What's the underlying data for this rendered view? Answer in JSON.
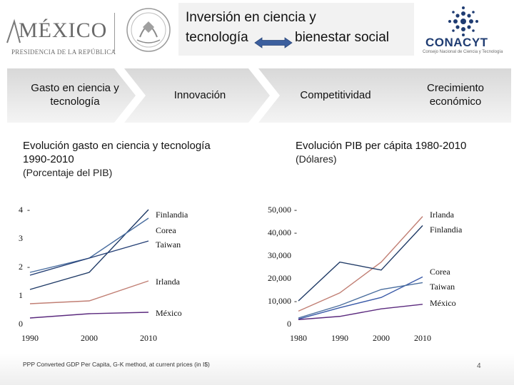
{
  "header": {
    "country_wordmark": "MÉXICO",
    "country_subtitle": "PRESIDENCIA DE LA REPÚBLICA",
    "title_line1": "Inversión en ciencia y",
    "title_left": "tecnología",
    "title_right": "bienestar social",
    "org_name": "CONACYT",
    "org_subtitle": "Consejo Nacional de Ciencia y Tecnología"
  },
  "flow": {
    "steps": [
      "Gasto en ciencia y tecnología",
      "Innovación",
      "Competitividad",
      "Crecimiento económico"
    ]
  },
  "left_section": {
    "title": "Evolución gasto en ciencia y tecnología 1990-2010",
    "subtitle": "(Porcentaje del PIB)"
  },
  "right_section": {
    "title": "Evolución PIB per cápita 1980-2010",
    "subtitle": "(Dólares)"
  },
  "colors": {
    "finlandia": "#1f3a66",
    "corea": "#4a6ea0",
    "taiwan": "#243f75",
    "irlanda": "#c17f74",
    "mexico": "#5b2a7e",
    "corea_pib": "#3a5aa8",
    "taiwan_pib": "#4a6e9e"
  },
  "chart_data": [
    {
      "type": "line",
      "title": "Evolución gasto en ciencia y tecnología 1990-2010",
      "ylabel": "Porcentaje del PIB",
      "x": [
        1990,
        2000,
        2010
      ],
      "x_ticks": [
        "1990",
        "2000",
        "2010"
      ],
      "y_ticks": [
        "0",
        "1",
        "2",
        "3",
        "4"
      ],
      "ylim": [
        0,
        4
      ],
      "series": [
        {
          "name": "Finlandia",
          "values": [
            1.2,
            1.8,
            4.0
          ]
        },
        {
          "name": "Corea",
          "values": [
            1.8,
            2.3,
            3.7
          ]
        },
        {
          "name": "Taiwan",
          "values": [
            1.7,
            2.3,
            2.9
          ]
        },
        {
          "name": "Irlanda",
          "values": [
            0.7,
            0.8,
            1.5
          ]
        },
        {
          "name": "México",
          "values": [
            0.2,
            0.35,
            0.4
          ]
        }
      ]
    },
    {
      "type": "line",
      "title": "Evolución PIB per cápita 1980-2010",
      "ylabel": "Dólares",
      "x": [
        1980,
        1990,
        2000,
        2010
      ],
      "x_ticks": [
        "1980",
        "1990",
        "2000",
        "2010"
      ],
      "y_ticks": [
        "0",
        "10,000",
        "20,000",
        "30,000",
        "40,000",
        "50,000"
      ],
      "ylim": [
        0,
        50000
      ],
      "series": [
        {
          "name": "Irlanda",
          "values": [
            5500,
            13500,
            27000,
            47000
          ]
        },
        {
          "name": "Finlandia",
          "values": [
            10000,
            27000,
            23500,
            43000
          ]
        },
        {
          "name": "Corea",
          "values": [
            2000,
            7000,
            11500,
            20500
          ]
        },
        {
          "name": "Taiwan",
          "values": [
            2500,
            8000,
            15000,
            18000
          ]
        },
        {
          "name": "México",
          "values": [
            1800,
            3200,
            6500,
            8500
          ]
        }
      ]
    }
  ],
  "footer": {
    "footnote": "PPP Converted GDP Per Capita, G-K method, at current prices (in I$)",
    "page_number": "4"
  }
}
